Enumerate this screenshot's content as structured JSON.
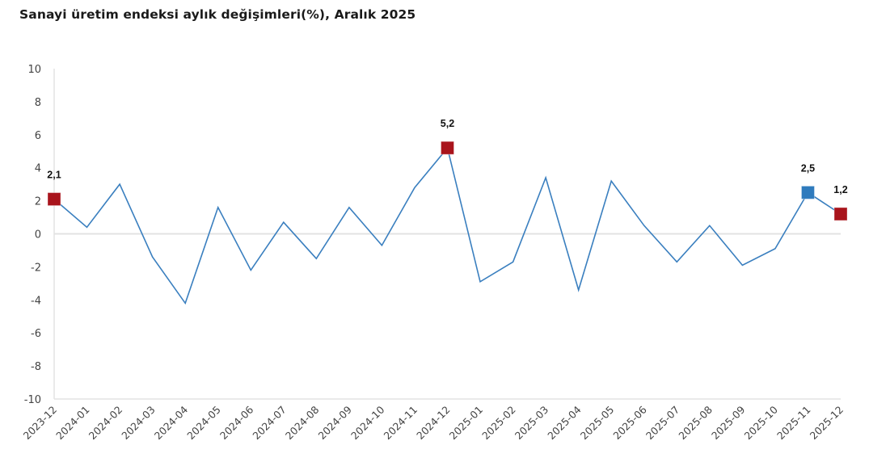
{
  "title": "Sanayi üretim endeksi aylık değişimleri(%), Aralık 2025",
  "colors": {
    "line": "#3a7fbf",
    "highlight_red": "#a9141c",
    "highlight_blue": "#2f7bbd",
    "grid": "#e3e3e3"
  },
  "chart_data": {
    "type": "line",
    "title": "Sanayi üretim endeksi aylık değişimleri(%), Aralık 2025",
    "xlabel": "",
    "ylabel": "",
    "ylim": [
      -10,
      10
    ],
    "yticks": [
      10,
      8,
      6,
      4,
      2,
      0,
      -2,
      -4,
      -6,
      -8,
      -10
    ],
    "grid": false,
    "legend": null,
    "categories": [
      "2023-12",
      "2024-01",
      "2024-02",
      "2024-03",
      "2024-04",
      "2024-05",
      "2024-06",
      "2024-07",
      "2024-08",
      "2024-09",
      "2024-10",
      "2024-11",
      "2024-12",
      "2025-01",
      "2025-02",
      "2025-03",
      "2025-04",
      "2025-05",
      "2025-06",
      "2025-07",
      "2025-08",
      "2025-09",
      "2025-10",
      "2025-11",
      "2025-12"
    ],
    "series": [
      {
        "name": "Aylık değişim (%)",
        "values": [
          2.1,
          0.4,
          3.0,
          -1.4,
          -4.2,
          1.6,
          -2.2,
          0.7,
          -1.5,
          1.6,
          -0.7,
          2.8,
          5.2,
          -2.9,
          -1.7,
          3.4,
          -3.4,
          3.2,
          0.5,
          -1.7,
          0.5,
          -1.9,
          -0.9,
          2.5,
          1.2
        ]
      }
    ],
    "annotations": [
      {
        "category": "2023-12",
        "label": "2,1",
        "marker": "square",
        "color": "#a9141c"
      },
      {
        "category": "2024-12",
        "label": "5,2",
        "marker": "square",
        "color": "#a9141c"
      },
      {
        "category": "2025-11",
        "label": "2,5",
        "marker": "square",
        "color": "#2f7bbd"
      },
      {
        "category": "2025-12",
        "label": "1,2",
        "marker": "square",
        "color": "#a9141c"
      }
    ]
  }
}
